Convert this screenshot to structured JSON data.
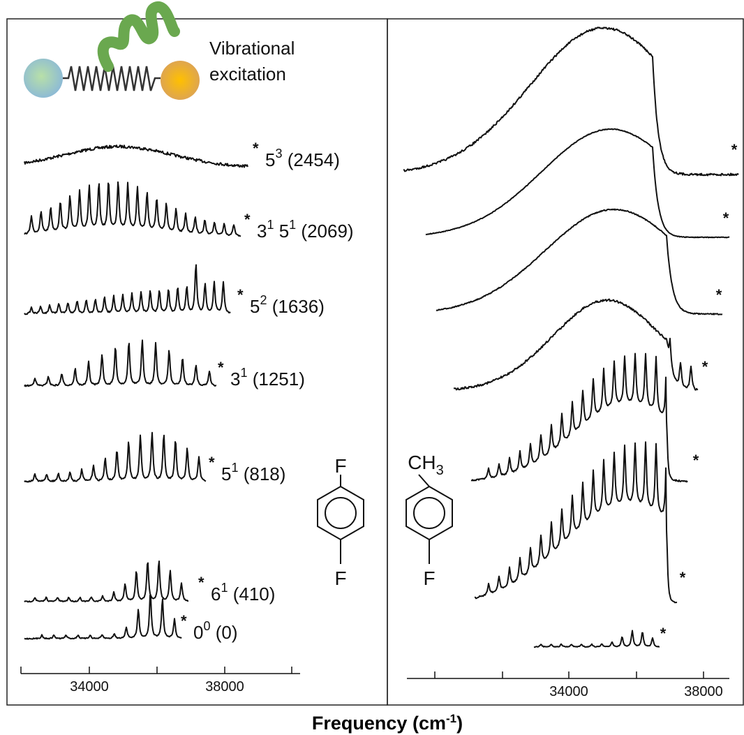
{
  "icon_caption": [
    "Vibrational",
    "excitation"
  ],
  "marker": "*",
  "left_labels": [
    [
      {
        "text": "5"
      },
      {
        "sup": "3"
      },
      {
        "text": " (2454)"
      }
    ],
    [
      {
        "text": "3"
      },
      {
        "sup": "1"
      },
      {
        "text": " 5"
      },
      {
        "sup": "1"
      },
      {
        "text": " (2069)"
      }
    ],
    [
      {
        "text": "5"
      },
      {
        "sup": "2"
      },
      {
        "text": " (1636)"
      }
    ],
    [
      {
        "text": "3"
      },
      {
        "sup": "1"
      },
      {
        "text": " (1251)"
      }
    ],
    [
      {
        "text": "5"
      },
      {
        "sup": "1"
      },
      {
        "text": " (818)"
      }
    ],
    [
      {
        "text": "6"
      },
      {
        "sup": "1"
      },
      {
        "text": " (410)"
      }
    ],
    [
      {
        "text": "0"
      },
      {
        "sup": "0"
      },
      {
        "text": " (0)"
      }
    ]
  ],
  "left_molecule": {
    "top": "F",
    "bottom": "F"
  },
  "right_molecule": {
    "top": "CH",
    "top_sub": "3",
    "bottom": "F"
  },
  "left_axis_ticks": [
    "34000",
    "38000"
  ],
  "right_axis_ticks": [
    "34000",
    "38000"
  ],
  "axis_label": {
    "text": "Frequency (cm",
    "sup": "-1",
    "end": ")"
  }
}
